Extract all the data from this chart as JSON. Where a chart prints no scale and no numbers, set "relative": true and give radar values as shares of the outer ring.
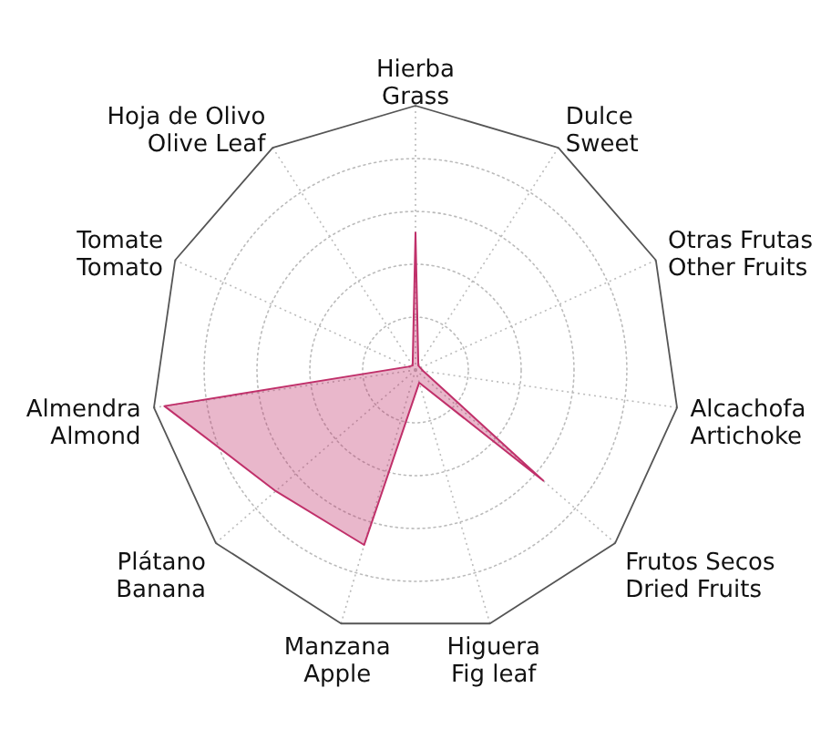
{
  "chart_data": {
    "type": "radar",
    "relative": true,
    "grid": true,
    "categories": [
      "Hierba\nGrass",
      "Dulce\nSweet",
      "Otras Frutas\nOther Fruits",
      "Alcachofa\nArtichoke",
      "Frutos Secos\nDried Fruits",
      "Higuera\nFig leaf",
      "Manzana\nApple",
      "Plátano\nBanana",
      "Almendra\nAlmond",
      "Tomate\nTomato",
      "Hoja de Olivo\nOlive Leaf"
    ],
    "series": [
      {
        "color": "#c0306a",
        "values": [
          0.52,
          0.02,
          0.02,
          0.03,
          0.64,
          0.05,
          0.69,
          0.7,
          0.96,
          0.03,
          0.02
        ]
      }
    ]
  }
}
